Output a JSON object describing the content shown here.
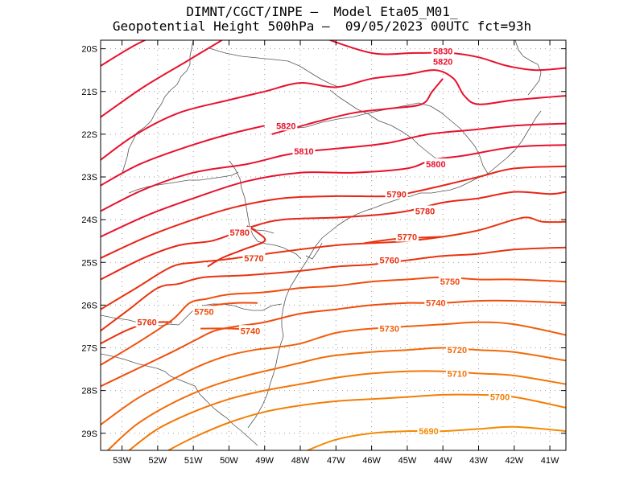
{
  "title": {
    "line1": "DIMNT/CGCT/INPE –  Model Eta05_M01_",
    "line2": "Geopotential Height 500hPa –  09/05/2023 00UTC fct=93h"
  },
  "lat_labels": [
    "20S",
    "21S",
    "22S",
    "23S",
    "24S",
    "25S",
    "26S",
    "27S",
    "28S",
    "29S"
  ],
  "lon_labels": [
    "53W",
    "52W",
    "51W",
    "50W",
    "49W",
    "48W",
    "47W",
    "46W",
    "45W",
    "44W",
    "43W",
    "42W",
    "41W"
  ],
  "chart_data": {
    "type": "contour-map",
    "variable": "Geopotential Height 500hPa",
    "units": "gpm",
    "lon_range": [
      -53.6,
      -40.55
    ],
    "lat_range": [
      -29.4,
      -19.8
    ],
    "grid": true,
    "contours": [
      {
        "level": 5830,
        "color": "#e8112d",
        "points": [
          [
            -53.6,
            -20.4
          ],
          [
            -52.6,
            -19.9
          ],
          [
            -51.8,
            -19.6
          ]
        ],
        "label_at": null
      },
      {
        "level": 5830,
        "color": "#e8112d",
        "points": [
          [
            -47.5,
            -19.7
          ],
          [
            -46.0,
            -20.1
          ],
          [
            -44.8,
            -20.1
          ],
          [
            -43.8,
            -20.1
          ],
          [
            -43.0,
            -20.2
          ],
          [
            -42.2,
            -20.4
          ],
          [
            -41.4,
            -20.5
          ],
          [
            -40.55,
            -20.45
          ]
        ],
        "label_at": [
          -44.0,
          -20.05
        ]
      },
      {
        "level": 5820,
        "color": "#e8112d",
        "points": [
          [
            -53.6,
            -21.6
          ],
          [
            -52.4,
            -20.9
          ],
          [
            -51.2,
            -20.3
          ],
          [
            -50.2,
            -19.8
          ]
        ],
        "label_at": null
      },
      {
        "level": 5820,
        "color": "#e8112d",
        "points": [
          [
            -53.6,
            -22.6
          ],
          [
            -52.6,
            -22.0
          ],
          [
            -51.4,
            -21.5
          ],
          [
            -50.0,
            -21.2
          ],
          [
            -49.0,
            -21.0
          ],
          [
            -48.0,
            -20.8
          ],
          [
            -47.0,
            -20.9
          ],
          [
            -46.0,
            -20.7
          ],
          [
            -45.0,
            -20.6
          ],
          [
            -44.2,
            -20.5
          ],
          [
            -43.7,
            -20.7
          ],
          [
            -43.4,
            -21.1
          ],
          [
            -43.0,
            -21.3
          ],
          [
            -42.0,
            -21.2
          ],
          [
            -40.55,
            -21.1
          ]
        ],
        "label_at": [
          -44.0,
          -20.3
        ]
      },
      {
        "level": 5820,
        "color": "#e8112d",
        "points": [
          [
            -48.8,
            -22.0
          ],
          [
            -47.5,
            -21.7
          ],
          [
            -46.5,
            -21.5
          ],
          [
            -45.5,
            -21.4
          ],
          [
            -44.6,
            -21.3
          ],
          [
            -44.3,
            -21.0
          ],
          [
            -44.0,
            -20.7
          ]
        ],
        "label_at": [
          -48.4,
          -21.8
        ]
      },
      {
        "level": 5810,
        "color": "#e8112d",
        "points": [
          [
            -53.6,
            -23.2
          ],
          [
            -52.5,
            -22.7
          ],
          [
            -51.2,
            -22.3
          ],
          [
            -50.0,
            -22.0
          ],
          [
            -49.0,
            -21.8
          ]
        ],
        "label_at": null
      },
      {
        "level": 5810,
        "color": "#e8112d",
        "points": [
          [
            -53.6,
            -23.8
          ],
          [
            -52.4,
            -23.3
          ],
          [
            -51.0,
            -22.9
          ],
          [
            -49.5,
            -22.7
          ],
          [
            -48.5,
            -22.5
          ],
          [
            -47.8,
            -22.4
          ],
          [
            -46.5,
            -22.3
          ],
          [
            -45.5,
            -22.2
          ],
          [
            -44.4,
            -22.0
          ],
          [
            -43.2,
            -21.9
          ],
          [
            -42.0,
            -21.8
          ],
          [
            -40.55,
            -21.75
          ]
        ],
        "label_at": [
          -47.9,
          -22.4
        ]
      },
      {
        "level": 5800,
        "color": "#e8112d",
        "points": [
          [
            -53.6,
            -24.4
          ],
          [
            -52.3,
            -23.9
          ],
          [
            -51.0,
            -23.5
          ],
          [
            -49.5,
            -23.1
          ],
          [
            -48.0,
            -22.9
          ],
          [
            -46.5,
            -22.9
          ],
          [
            -45.0,
            -22.8
          ],
          [
            -44.3,
            -22.6
          ],
          [
            -43.4,
            -22.5
          ],
          [
            -42.0,
            -22.3
          ],
          [
            -40.55,
            -22.25
          ]
        ],
        "label_at": [
          -44.2,
          -22.7
        ]
      },
      {
        "level": 5790,
        "color": "#e82417",
        "points": [
          [
            -53.6,
            -24.9
          ],
          [
            -52.3,
            -24.4
          ],
          [
            -51.0,
            -24.0
          ],
          [
            -49.8,
            -23.7
          ],
          [
            -48.5,
            -23.5
          ],
          [
            -47.0,
            -23.45
          ],
          [
            -45.5,
            -23.45
          ],
          [
            -44.8,
            -23.35
          ],
          [
            -44.0,
            -23.2
          ],
          [
            -43.0,
            -23.0
          ],
          [
            -42.0,
            -22.8
          ],
          [
            -40.55,
            -22.75
          ]
        ],
        "label_at": [
          -45.3,
          -23.4
        ]
      },
      {
        "level": 5780,
        "color": "#e82417",
        "points": [
          [
            -53.6,
            -25.4
          ],
          [
            -52.4,
            -24.9
          ],
          [
            -51.4,
            -24.6
          ],
          [
            -50.5,
            -24.5
          ],
          [
            -49.8,
            -24.3
          ],
          [
            -49.3,
            -24.15
          ],
          [
            -48.5,
            -24.0
          ],
          [
            -47.0,
            -23.95
          ],
          [
            -46.0,
            -23.9
          ],
          [
            -45.0,
            -23.8
          ],
          [
            -44.0,
            -23.6
          ],
          [
            -43.0,
            -23.5
          ],
          [
            -42.0,
            -23.35
          ],
          [
            -41.0,
            -23.4
          ],
          [
            -40.55,
            -23.35
          ]
        ],
        "label_at": [
          -44.5,
          -23.8
        ]
      },
      {
        "level": 5780,
        "color": "#e82417",
        "points": [
          [
            -49.5,
            -24.15
          ],
          [
            -49.2,
            -24.3
          ],
          [
            -49.0,
            -24.5
          ],
          [
            -49.6,
            -24.7
          ],
          [
            -50.2,
            -24.9
          ],
          [
            -50.6,
            -25.1
          ]
        ],
        "label_at": [
          -49.7,
          -24.3
        ]
      },
      {
        "level": 5770,
        "color": "#e8330f",
        "points": [
          [
            -53.6,
            -26.1
          ],
          [
            -52.6,
            -25.6
          ],
          [
            -51.6,
            -25.1
          ],
          [
            -50.9,
            -25.0
          ],
          [
            -50.3,
            -24.95
          ],
          [
            -49.8,
            -24.9
          ],
          [
            -48.5,
            -24.75
          ],
          [
            -47.0,
            -24.6
          ],
          [
            -46.0,
            -24.55
          ],
          [
            -45.0,
            -24.5
          ],
          [
            -44.0,
            -24.4
          ],
          [
            -43.0,
            -24.25
          ],
          [
            -42.0,
            -24.0
          ],
          [
            -41.6,
            -23.95
          ],
          [
            -41.2,
            -24.05
          ],
          [
            -40.55,
            -24.05
          ]
        ],
        "label_at": [
          -49.3,
          -24.9
        ]
      },
      {
        "level": 5770,
        "color": "#e8330f",
        "points": [
          [
            -46.2,
            -24.55
          ],
          [
            -45.3,
            -24.45
          ],
          [
            -44.0,
            -24.4
          ]
        ],
        "label_at": [
          -45.0,
          -24.4
        ]
      },
      {
        "level": 5760,
        "color": "#e8330f",
        "points": [
          [
            -53.6,
            -26.6
          ],
          [
            -52.8,
            -26.1
          ],
          [
            -52.0,
            -25.6
          ],
          [
            -51.4,
            -25.5
          ],
          [
            -50.7,
            -25.35
          ],
          [
            -49.5,
            -25.3
          ],
          [
            -48.0,
            -25.2
          ],
          [
            -47.0,
            -25.1
          ],
          [
            -46.0,
            -25.05
          ],
          [
            -45.0,
            -24.95
          ],
          [
            -44.0,
            -24.85
          ],
          [
            -43.0,
            -24.8
          ],
          [
            -42.0,
            -24.7
          ],
          [
            -40.55,
            -24.65
          ]
        ],
        "label_at": [
          -45.5,
          -24.95
        ]
      },
      {
        "level": 5760,
        "color": "#e8330f",
        "points": [
          [
            -53.6,
            -26.9
          ],
          [
            -52.9,
            -26.6
          ],
          [
            -52.4,
            -26.45
          ],
          [
            -52.0,
            -26.4
          ],
          [
            -51.6,
            -26.4
          ]
        ],
        "label_at": [
          -52.3,
          -26.4
        ]
      },
      {
        "level": 5750,
        "color": "#f04c0c",
        "points": [
          [
            -53.6,
            -27.4
          ],
          [
            -52.6,
            -26.9
          ],
          [
            -51.6,
            -26.35
          ],
          [
            -51.1,
            -25.95
          ],
          [
            -50.6,
            -25.85
          ],
          [
            -50.0,
            -25.75
          ],
          [
            -49.0,
            -25.7
          ],
          [
            -48.0,
            -25.6
          ],
          [
            -47.0,
            -25.55
          ],
          [
            -46.0,
            -25.45
          ],
          [
            -45.0,
            -25.4
          ],
          [
            -44.0,
            -25.35
          ],
          [
            -43.0,
            -25.4
          ],
          [
            -42.0,
            -25.4
          ],
          [
            -40.55,
            -25.45
          ]
        ],
        "label_at": [
          -43.8,
          -25.45
        ]
      },
      {
        "level": 5750,
        "color": "#f04c0c",
        "points": [
          [
            -50.9,
            -26.1
          ],
          [
            -50.4,
            -26.0
          ],
          [
            -49.8,
            -25.95
          ],
          [
            -49.2,
            -25.95
          ]
        ],
        "label_at": [
          -50.7,
          -26.15
        ]
      },
      {
        "level": 5740,
        "color": "#f04c0c",
        "points": [
          [
            -53.6,
            -27.9
          ],
          [
            -52.6,
            -27.5
          ],
          [
            -51.6,
            -27.1
          ],
          [
            -50.9,
            -26.8
          ],
          [
            -50.4,
            -26.6
          ],
          [
            -49.8,
            -26.5
          ],
          [
            -49.0,
            -26.4
          ],
          [
            -48.0,
            -26.2
          ],
          [
            -47.0,
            -26.1
          ],
          [
            -46.0,
            -26.0
          ],
          [
            -45.0,
            -25.95
          ],
          [
            -44.0,
            -25.95
          ],
          [
            -43.0,
            -25.9
          ],
          [
            -42.0,
            -25.9
          ],
          [
            -40.55,
            -25.95
          ]
        ],
        "label_at": [
          -44.2,
          -25.95
        ]
      },
      {
        "level": 5740,
        "color": "#f04c0c",
        "points": [
          [
            -50.8,
            -26.55
          ],
          [
            -49.9,
            -26.55
          ],
          [
            -49.2,
            -26.6
          ]
        ],
        "label_at": [
          -49.4,
          -26.6
        ]
      },
      {
        "level": 5730,
        "color": "#f25f0a",
        "points": [
          [
            -53.6,
            -28.8
          ],
          [
            -52.6,
            -28.2
          ],
          [
            -51.6,
            -27.75
          ],
          [
            -50.9,
            -27.45
          ],
          [
            -50.1,
            -27.2
          ],
          [
            -49.3,
            -27.05
          ],
          [
            -48.8,
            -27.0
          ],
          [
            -48.0,
            -26.9
          ],
          [
            -47.0,
            -26.65
          ],
          [
            -46.0,
            -26.55
          ],
          [
            -45.0,
            -26.5
          ],
          [
            -44.0,
            -26.45
          ],
          [
            -43.0,
            -26.4
          ],
          [
            -42.0,
            -26.45
          ],
          [
            -40.55,
            -26.7
          ]
        ],
        "label_at": [
          -45.5,
          -26.55
        ]
      },
      {
        "level": 5720,
        "color": "#f26a08",
        "points": [
          [
            -53.4,
            -29.4
          ],
          [
            -52.6,
            -28.8
          ],
          [
            -51.6,
            -28.3
          ],
          [
            -50.5,
            -27.9
          ],
          [
            -49.5,
            -27.65
          ],
          [
            -48.5,
            -27.45
          ],
          [
            -48.0,
            -27.35
          ],
          [
            -47.2,
            -27.2
          ],
          [
            -46.0,
            -27.1
          ],
          [
            -45.0,
            -27.05
          ],
          [
            -44.0,
            -27.0
          ],
          [
            -43.0,
            -27.05
          ],
          [
            -42.0,
            -27.1
          ],
          [
            -40.55,
            -27.3
          ]
        ],
        "label_at": [
          -43.6,
          -27.05
        ]
      },
      {
        "level": 5710,
        "color": "#f47506",
        "points": [
          [
            -52.8,
            -29.4
          ],
          [
            -52.0,
            -28.9
          ],
          [
            -51.0,
            -28.5
          ],
          [
            -50.0,
            -28.2
          ],
          [
            -49.0,
            -28.0
          ],
          [
            -48.0,
            -27.85
          ],
          [
            -47.0,
            -27.7
          ],
          [
            -46.0,
            -27.6
          ],
          [
            -45.0,
            -27.55
          ],
          [
            -44.0,
            -27.55
          ],
          [
            -43.0,
            -27.6
          ],
          [
            -42.0,
            -27.65
          ],
          [
            -40.55,
            -27.85
          ]
        ],
        "label_at": [
          -43.6,
          -27.6
        ]
      },
      {
        "level": 5700,
        "color": "#f47d05",
        "points": [
          [
            -51.7,
            -29.4
          ],
          [
            -51.0,
            -29.1
          ],
          [
            -50.0,
            -28.75
          ],
          [
            -49.0,
            -28.5
          ],
          [
            -48.0,
            -28.35
          ],
          [
            -47.0,
            -28.25
          ],
          [
            -46.0,
            -28.2
          ],
          [
            -45.0,
            -28.15
          ],
          [
            -44.0,
            -28.1
          ],
          [
            -43.0,
            -28.1
          ],
          [
            -42.0,
            -28.15
          ],
          [
            -40.55,
            -28.4
          ]
        ],
        "label_at": [
          -42.4,
          -28.15
        ]
      },
      {
        "level": 5690,
        "color": "#f48a04",
        "points": [
          [
            -47.8,
            -29.4
          ],
          [
            -47.0,
            -29.15
          ],
          [
            -46.0,
            -29.0
          ],
          [
            -45.0,
            -28.95
          ],
          [
            -44.0,
            -28.95
          ],
          [
            -43.0,
            -28.9
          ],
          [
            -42.0,
            -28.85
          ],
          [
            -40.55,
            -28.95
          ]
        ],
        "label_at": [
          -44.4,
          -28.95
        ]
      }
    ]
  }
}
